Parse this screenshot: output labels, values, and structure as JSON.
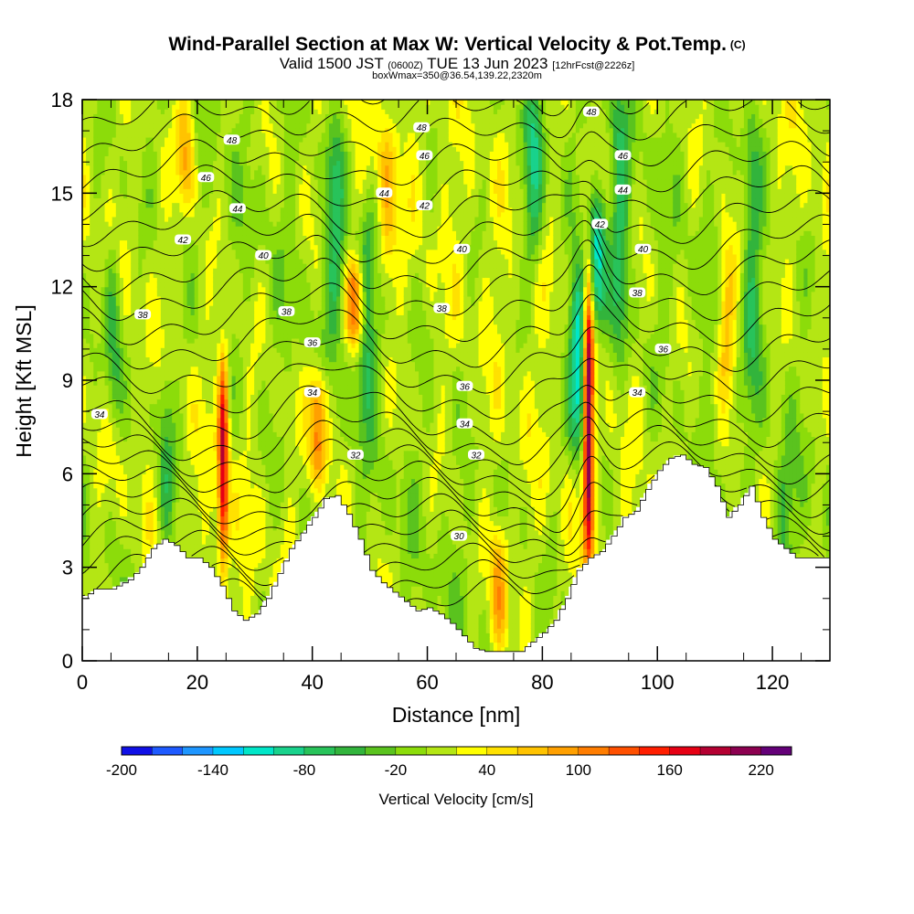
{
  "header": {
    "title": "Wind-Parallel Section at Max W: Vertical Velocity & Pot.Temp.",
    "copyright": "(C)",
    "valid_prefix": "Valid 1500 JST",
    "valid_utc": "(0600Z)",
    "valid_date": "TUE 13 Jun 2023",
    "forecast": "[12hrFcst@2226z]",
    "box_info": "boxWmax=350@36.54,139.22,2320m"
  },
  "chart_data": {
    "type": "heatmap",
    "xlabel": "Distance [nm]",
    "ylabel": "Height [Kft MSL]",
    "xlim": [
      0,
      130
    ],
    "ylim": [
      0,
      18
    ],
    "x_ticks": [
      0,
      20,
      40,
      60,
      80,
      100,
      120
    ],
    "y_ticks": [
      0,
      3,
      6,
      9,
      12,
      15,
      18
    ],
    "colorbar": {
      "title": "Vertical Velocity [cm/s]",
      "labels": [
        "-200",
        "-140",
        "-80",
        "-20",
        "40",
        "100",
        "160",
        "220"
      ],
      "bounds": [
        -200,
        -180,
        -160,
        -140,
        -120,
        -100,
        -80,
        -60,
        -40,
        -20,
        0,
        20,
        40,
        60,
        80,
        100,
        120,
        140,
        160,
        180,
        200,
        220
      ],
      "colors": [
        "#1010e6",
        "#1e5aff",
        "#1e96ff",
        "#00c8ff",
        "#00e6c8",
        "#19d28c",
        "#28c35a",
        "#32b43c",
        "#5ac31e",
        "#8cdc0a",
        "#b4e614",
        "#ffff00",
        "#ffe100",
        "#ffc300",
        "#ffa000",
        "#ff7d00",
        "#ff5000",
        "#ff1e00",
        "#e60014",
        "#b40032",
        "#8c0050",
        "#640078"
      ]
    },
    "terrain": {
      "x": [
        0,
        2,
        5,
        8,
        10,
        12,
        14,
        16,
        18,
        20,
        22,
        24,
        26,
        28,
        30,
        32,
        34,
        36,
        38,
        40,
        42,
        44,
        46,
        48,
        50,
        52,
        54,
        56,
        58,
        60,
        62,
        64,
        66,
        68,
        70,
        72,
        74,
        76,
        78,
        80,
        82,
        84,
        86,
        88,
        90,
        92,
        94,
        96,
        98,
        100,
        102,
        104,
        106,
        108,
        110,
        112,
        114,
        116,
        118,
        120,
        122,
        124,
        126,
        128,
        130
      ],
      "height_kft": [
        2.0,
        2.3,
        2.3,
        2.6,
        3.0,
        3.6,
        3.9,
        3.7,
        3.3,
        3.3,
        3.0,
        2.4,
        1.6,
        1.3,
        1.5,
        2.0,
        2.8,
        3.6,
        4.1,
        4.6,
        5.2,
        5.3,
        4.7,
        3.9,
        2.9,
        2.5,
        2.2,
        1.9,
        1.6,
        1.7,
        1.5,
        1.2,
        0.8,
        0.4,
        0.3,
        0.3,
        0.3,
        0.3,
        0.6,
        0.9,
        1.3,
        2.0,
        2.9,
        3.3,
        3.5,
        4.0,
        4.6,
        4.8,
        5.5,
        6.1,
        6.5,
        6.6,
        6.3,
        6.2,
        5.6,
        4.6,
        5.0,
        5.6,
        4.6,
        3.9,
        3.6,
        3.3,
        3.3,
        3.3,
        3.3
      ]
    },
    "updraft_features": [
      {
        "x": 24.5,
        "zmin": 3.3,
        "zmax": 9.5,
        "w": 170
      },
      {
        "x": 88,
        "zmin": 3.4,
        "zmax": 12.5,
        "w": 220
      },
      {
        "x": 86.3,
        "zmin": 7.0,
        "zmax": 12.0,
        "w": -140
      },
      {
        "x": 89.5,
        "zmin": 11.0,
        "zmax": 14.5,
        "w": -120
      },
      {
        "x": 41,
        "zmin": 6.0,
        "zmax": 9.0,
        "w": 110
      },
      {
        "x": 72.5,
        "zmin": 0.5,
        "zmax": 4.0,
        "w": 90
      },
      {
        "x": 47.5,
        "zmin": 10.5,
        "zmax": 12.5,
        "w": 110
      },
      {
        "x": 18,
        "zmin": 15.0,
        "zmax": 18.0,
        "w": 80
      },
      {
        "x": 53,
        "zmin": 12.0,
        "zmax": 17.0,
        "w": 60
      },
      {
        "x": 112,
        "zmin": 9.0,
        "zmax": 13.0,
        "w": 70
      }
    ],
    "downdraft_features": [
      {
        "x": 5.5,
        "zmin": 8.0,
        "zmax": 13.0,
        "w": -70
      },
      {
        "x": 14.5,
        "zmin": 4.0,
        "zmax": 9.5,
        "w": -60
      },
      {
        "x": 44,
        "zmin": 11.0,
        "zmax": 17.0,
        "w": -70
      },
      {
        "x": 49.5,
        "zmin": 8.0,
        "zmax": 14.0,
        "w": -70
      },
      {
        "x": 78.5,
        "zmin": 13.0,
        "zmax": 18.0,
        "w": -80
      },
      {
        "x": 93.5,
        "zmin": 10.0,
        "zmax": 18.0,
        "w": -60
      },
      {
        "x": 116.5,
        "zmin": 9.0,
        "zmax": 18.0,
        "w": -60
      },
      {
        "x": 122,
        "zmin": 3.0,
        "zmax": 6.0,
        "w": -50
      }
    ],
    "isentropes": {
      "levels": [
        30,
        32,
        34,
        36,
        38,
        40,
        42,
        44,
        46,
        48
      ],
      "labels": [
        {
          "text": "30",
          "x": 65.5,
          "z": 4.0
        },
        {
          "text": "32",
          "x": 47.5,
          "z": 6.6
        },
        {
          "text": "32",
          "x": 68.5,
          "z": 6.6
        },
        {
          "text": "34",
          "x": 3.0,
          "z": 7.9
        },
        {
          "text": "34",
          "x": 40.0,
          "z": 8.6
        },
        {
          "text": "34",
          "x": 66.5,
          "z": 7.6
        },
        {
          "text": "34",
          "x": 96.5,
          "z": 8.6
        },
        {
          "text": "36",
          "x": 40.0,
          "z": 10.2
        },
        {
          "text": "36",
          "x": 66.5,
          "z": 8.8
        },
        {
          "text": "36",
          "x": 101.0,
          "z": 10.0
        },
        {
          "text": "38",
          "x": 10.5,
          "z": 11.1
        },
        {
          "text": "38",
          "x": 35.5,
          "z": 11.2
        },
        {
          "text": "38",
          "x": 62.5,
          "z": 11.3
        },
        {
          "text": "38",
          "x": 96.5,
          "z": 11.8
        },
        {
          "text": "40",
          "x": 31.5,
          "z": 13.0
        },
        {
          "text": "40",
          "x": 66.0,
          "z": 13.2
        },
        {
          "text": "40",
          "x": 97.5,
          "z": 13.2
        },
        {
          "text": "42",
          "x": 17.5,
          "z": 13.5
        },
        {
          "text": "42",
          "x": 59.5,
          "z": 14.6
        },
        {
          "text": "42",
          "x": 90.0,
          "z": 14.0
        },
        {
          "text": "44",
          "x": 27.0,
          "z": 14.5
        },
        {
          "text": "44",
          "x": 52.5,
          "z": 15.0
        },
        {
          "text": "44",
          "x": 94.0,
          "z": 15.1
        },
        {
          "text": "46",
          "x": 21.5,
          "z": 15.5
        },
        {
          "text": "46",
          "x": 59.5,
          "z": 16.2
        },
        {
          "text": "46",
          "x": 94.0,
          "z": 16.2
        },
        {
          "text": "48",
          "x": 26.0,
          "z": 16.7
        },
        {
          "text": "48",
          "x": 59.0,
          "z": 17.1
        },
        {
          "text": "48",
          "x": 88.5,
          "z": 17.6
        }
      ]
    },
    "colors": {
      "background": "#ffffff",
      "terrain_fill": "#ffffff",
      "contour_line": "#000000"
    }
  }
}
